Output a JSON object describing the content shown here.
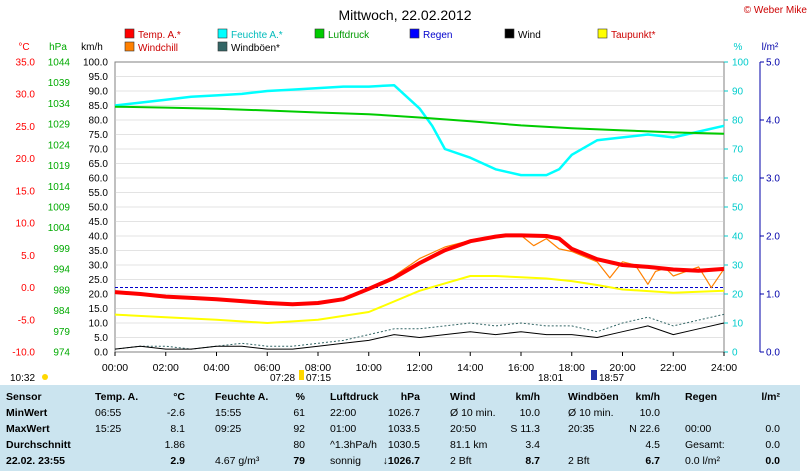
{
  "header": {
    "title": "Mittwoch, 22.02.2012",
    "copyright": "© Weber Mike"
  },
  "legend": [
    {
      "label": "Temp. A.*",
      "color": "#ff0000"
    },
    {
      "label": "Feuchte A.*",
      "color": "#00ffff"
    },
    {
      "label": "Luftdruck",
      "color": "#00cc00"
    },
    {
      "label": "Regen",
      "color": "#0000ff"
    },
    {
      "label": "Wind",
      "color": "#000000"
    },
    {
      "label": "Taupunkt*",
      "color": "#ffff00"
    },
    {
      "label": "Windchill",
      "color": "#ff8000"
    },
    {
      "label": "Windböen*",
      "color": "#336666"
    }
  ],
  "axis_units": {
    "temp": "°C",
    "press": "hPa",
    "wind": "km/h",
    "hum": "%",
    "rain": "l/m²"
  },
  "time_markers": {
    "left_time": "10:32",
    "sunrise_a": "07:28",
    "sunrise_b": "07:15",
    "sunset_a": "18:01",
    "sunset_b": "18:57"
  },
  "chart_data": {
    "type": "line",
    "title": "Mittwoch, 22.02.2012",
    "x_ticks": [
      "00:00",
      "02:00",
      "04:00",
      "06:00",
      "08:00",
      "10:00",
      "12:00",
      "14:00",
      "16:00",
      "18:00",
      "20:00",
      "22:00",
      "24:00"
    ],
    "xlim_hours": [
      0,
      24
    ],
    "axes": {
      "temp_c": {
        "ticks": [
          "35.0",
          "30.0",
          "25.0",
          "20.0",
          "15.0",
          "10.0",
          "5.0",
          "0.0",
          "-5.0",
          "-10.0"
        ],
        "range": [
          -10,
          35
        ],
        "color": "#ff0000"
      },
      "press_hpa": {
        "ticks": [
          "1044",
          "1039",
          "1034",
          "1029",
          "1024",
          "1019",
          "1014",
          "1009",
          "1004",
          "999",
          "994",
          "989",
          "984",
          "979",
          "974"
        ],
        "range": [
          974,
          1044
        ],
        "color": "#00aa00"
      },
      "wind_kmh": {
        "ticks": [
          "100.0",
          "95.0",
          "90.0",
          "85.0",
          "80.0",
          "75.0",
          "70.0",
          "65.0",
          "60.0",
          "55.0",
          "50.0",
          "45.0",
          "40.0",
          "35.0",
          "30.0",
          "25.0",
          "20.0",
          "15.0",
          "10.0",
          "5.0",
          "0.0"
        ],
        "range": [
          0,
          100
        ],
        "color": "#000000"
      },
      "hum_pct": {
        "ticks": [
          "100",
          "90",
          "80",
          "70",
          "60",
          "50",
          "40",
          "30",
          "20",
          "10",
          "0"
        ],
        "range": [
          0,
          100
        ],
        "color": "#00cccc"
      },
      "rain_lm2": {
        "ticks": [
          "5.0",
          "4.0",
          "3.0",
          "2.0",
          "1.0",
          "0.0"
        ],
        "range": [
          0,
          5
        ],
        "color": "#0000aa"
      }
    },
    "grid": true,
    "freeze_line_c": 0.0,
    "series": [
      {
        "name": "Temp. A.*",
        "axis": "temp_c",
        "color": "#ff0000",
        "x": [
          0,
          1,
          2,
          3,
          4,
          5,
          6,
          7,
          8,
          9,
          10,
          11,
          12,
          13,
          14,
          15,
          15.4,
          16,
          17,
          17.5,
          18,
          19,
          20,
          21,
          22,
          23,
          24
        ],
        "y": [
          -0.7,
          -1.0,
          -1.4,
          -1.6,
          -1.8,
          -2.1,
          -2.4,
          -2.6,
          -2.4,
          -1.8,
          -0.2,
          1.5,
          3.8,
          5.8,
          7.2,
          7.9,
          8.1,
          8.1,
          8.0,
          7.6,
          6.0,
          4.4,
          3.5,
          3.2,
          2.8,
          2.6,
          2.9
        ]
      },
      {
        "name": "Taupunkt*",
        "axis": "temp_c",
        "color": "#ffff00",
        "x": [
          0,
          2,
          4,
          6,
          8,
          10,
          12,
          14,
          15,
          16,
          17,
          18,
          19,
          20,
          22,
          24
        ],
        "y": [
          -4.2,
          -4.6,
          -5.0,
          -5.5,
          -5.0,
          -3.8,
          -0.5,
          1.8,
          1.8,
          1.6,
          1.4,
          1.0,
          0.4,
          -0.3,
          -0.8,
          -0.5
        ]
      },
      {
        "name": "Windchill",
        "axis": "temp_c",
        "color": "#ff8000",
        "x": [
          10,
          11,
          12,
          13,
          14,
          15,
          16,
          16.5,
          17,
          17.5,
          18,
          19,
          19.5,
          20,
          20.5,
          21,
          21.3,
          21.7,
          22,
          23,
          23.5,
          24
        ],
        "y": [
          -0.2,
          1.8,
          4.5,
          6.3,
          7.3,
          7.9,
          8.1,
          6.5,
          7.6,
          6.0,
          5.6,
          4.0,
          1.5,
          4.0,
          3.5,
          0.5,
          2.5,
          3.0,
          1.8,
          3.2,
          0.0,
          2.9
        ]
      },
      {
        "name": "Luftdruck",
        "axis": "press_hpa",
        "color": "#00cc00",
        "x": [
          0,
          2,
          4,
          6,
          8,
          10,
          12,
          14,
          16,
          18,
          20,
          22,
          24
        ],
        "y": [
          1033.2,
          1033.0,
          1032.7,
          1032.3,
          1031.8,
          1031.4,
          1030.6,
          1029.7,
          1028.7,
          1028.0,
          1027.5,
          1027.0,
          1026.7
        ]
      },
      {
        "name": "Feuchte A.*",
        "axis": "hum_pct",
        "color": "#00ffff",
        "x": [
          0,
          1,
          2,
          3,
          4,
          5,
          6,
          7,
          8,
          9,
          10,
          11,
          12,
          12.5,
          13,
          14,
          15,
          16,
          17,
          17.5,
          18,
          19,
          20,
          21,
          22,
          23,
          24
        ],
        "y": [
          85,
          86,
          87,
          88,
          88.5,
          89,
          90,
          90.5,
          91,
          91.5,
          91.5,
          92,
          84,
          78,
          70,
          67,
          63,
          61,
          61,
          63,
          68,
          73,
          74,
          75,
          74,
          76,
          78
        ]
      },
      {
        "name": "Wind",
        "axis": "wind_kmh",
        "color": "#000000",
        "x": [
          0,
          1,
          2,
          3,
          4,
          5,
          6,
          7,
          8,
          9,
          10,
          11,
          12,
          13,
          14,
          15,
          16,
          17,
          18,
          19,
          20,
          21,
          22,
          23,
          24
        ],
        "y": [
          1,
          2,
          1,
          1,
          2,
          2,
          1,
          1,
          2,
          3,
          4,
          6,
          5,
          6,
          7,
          6,
          7,
          6,
          6,
          5,
          7,
          9,
          6,
          8,
          10
        ]
      },
      {
        "name": "Windböen*",
        "axis": "wind_kmh",
        "color": "#336666",
        "x": [
          0,
          1,
          2,
          3,
          4,
          5,
          6,
          7,
          8,
          9,
          10,
          11,
          12,
          13,
          14,
          15,
          16,
          17,
          18,
          19,
          20,
          21,
          22,
          23,
          24
        ],
        "y": [
          1,
          2,
          2,
          1,
          2,
          3,
          2,
          2,
          3,
          4,
          6,
          8,
          8,
          9,
          10,
          9,
          10,
          9,
          9,
          7,
          10,
          12,
          9,
          11,
          13
        ]
      }
    ]
  },
  "table": {
    "headers": [
      "Sensor",
      "Temp. A.",
      "°C",
      "Feuchte A.",
      "%",
      "Luftdruck",
      "hPa",
      "Wind",
      "km/h",
      "Windböen",
      "km/h",
      "Regen",
      "l/m²"
    ],
    "rows": [
      {
        "label": "MinWert",
        "cells": [
          "06:55",
          "-2.6",
          "15:55",
          "61",
          "22:00",
          "1026.7",
          "Ø 10 min.",
          "10.0",
          "Ø 10 min.",
          "10.0",
          "",
          ""
        ]
      },
      {
        "label": "MaxWert",
        "cells": [
          "15:25",
          "8.1",
          "09:25",
          "92",
          "01:00",
          "1033.5",
          "20:50",
          "S 11.3",
          "20:35",
          "N 22.6",
          "00:00",
          "0.0"
        ]
      },
      {
        "label": "Durchschnitt",
        "cells": [
          "",
          "1.86",
          "",
          "80",
          "^1.3hPa/h",
          "1030.5",
          "81.1 km",
          "3.4",
          "",
          "4.5",
          "Gesamt:",
          "0.0"
        ]
      },
      {
        "label": "22.02. 23:55",
        "cells": [
          "",
          "2.9",
          "4.67 g/m³",
          "79",
          "sonnig",
          "↓1026.7",
          "2 Bft",
          "8.7",
          "2 Bft",
          "6.7",
          "0.0 l/m²",
          "0.0"
        ]
      }
    ]
  }
}
